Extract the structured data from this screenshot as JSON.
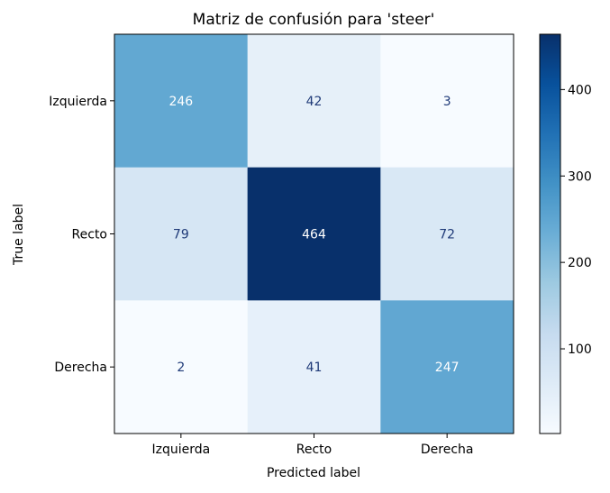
{
  "chart_data": {
    "type": "heatmap",
    "title": "Matriz de confusión para 'steer'",
    "xlabel": "Predicted label",
    "ylabel": "True label",
    "row_labels": [
      "Izquierda",
      "Recto",
      "Derecha"
    ],
    "col_labels": [
      "Izquierda",
      "Recto",
      "Derecha"
    ],
    "matrix": [
      [
        246,
        42,
        3
      ],
      [
        79,
        464,
        72
      ],
      [
        2,
        41,
        247
      ]
    ],
    "colormap": "Blues",
    "color_range": [
      2,
      464
    ],
    "colorbar_ticks": [
      100,
      200,
      300,
      400
    ],
    "colorbar_tick_labels": [
      "100",
      "200",
      "300",
      "400"
    ]
  },
  "colors": {
    "background": "#ffffff",
    "axis": "#000000",
    "dark_text": "#1f3a78",
    "light_text": "#ffffff"
  }
}
